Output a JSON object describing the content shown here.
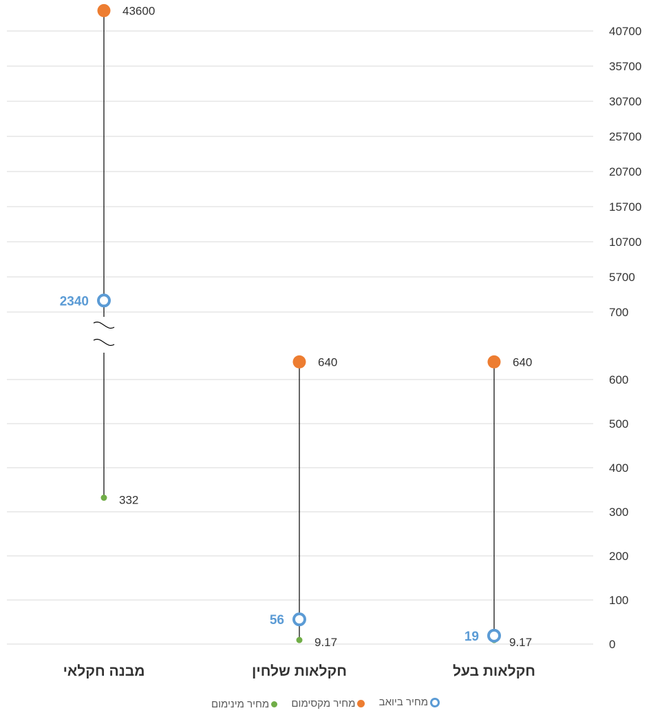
{
  "chart_data": {
    "type": "dot-range",
    "categories": [
      "מבנה חקלאי",
      "חקלאות שלחין",
      "חקלאות בעל"
    ],
    "series": [
      {
        "name": "מחיר מקסימום",
        "values": [
          43600,
          640,
          640
        ],
        "labels": [
          "43600",
          "640",
          "640"
        ],
        "color": "#ed7d31",
        "marker": "filled-circle"
      },
      {
        "name": "מחיר ביואב",
        "values": [
          2340,
          56,
          19
        ],
        "labels": [
          "2340",
          "56",
          "19"
        ],
        "color": "#5b9bd5",
        "marker": "hollow-circle"
      },
      {
        "name": "מחיר מינימום",
        "values": [
          332,
          9.17,
          9.17
        ],
        "labels": [
          "332",
          "9.17",
          "9.17"
        ],
        "color": "#70ad47",
        "marker": "small-circle"
      }
    ],
    "y_axis_upper": {
      "ticks": [
        "700",
        "5700",
        "10700",
        "15700",
        "20700",
        "25700",
        "30700",
        "35700",
        "40700"
      ],
      "range": [
        700,
        43600
      ]
    },
    "y_axis_lower": {
      "ticks": [
        "0",
        "100",
        "200",
        "300",
        "400",
        "500",
        "600"
      ],
      "range": [
        0,
        640
      ]
    },
    "axis_break": "between 640 and 700",
    "y_axis_position": "right",
    "grid": true,
    "legend_position": "bottom",
    "colors": {
      "gridline": "#d9d9d9",
      "stem": "#000000",
      "text": "#333333"
    }
  },
  "legend": [
    {
      "label": "מחיר ביואב",
      "marker": "hollow-circle",
      "color": "#5b9bd5"
    },
    {
      "label": "מחיר מקסימום",
      "marker": "filled-circle",
      "color": "#ed7d31"
    },
    {
      "label": "מחיר מינימום",
      "marker": "small-circle",
      "color": "#70ad47"
    }
  ]
}
